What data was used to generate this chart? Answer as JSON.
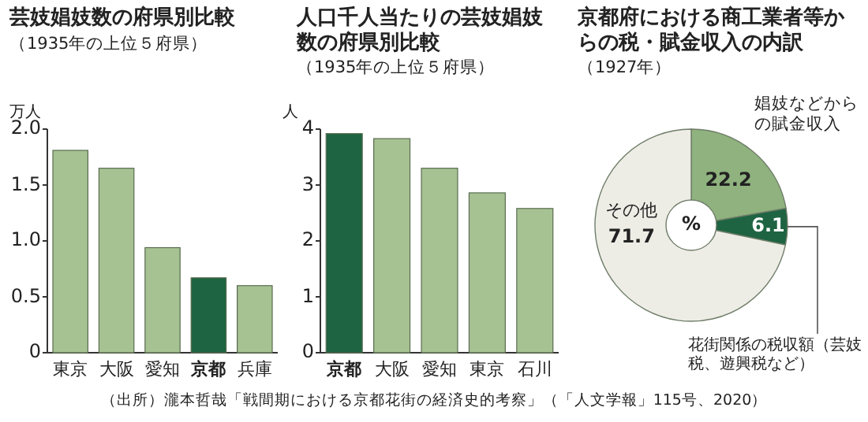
{
  "chart_data": [
    {
      "type": "bar",
      "title": "芸妓娼妓数の府県別比較",
      "subtitle": "（1935年の上位５府県）",
      "ylabel": "万人",
      "categories": [
        "東京",
        "大阪",
        "愛知",
        "京都",
        "兵庫"
      ],
      "values": [
        1.81,
        1.65,
        0.94,
        0.67,
        0.6
      ],
      "colors": [
        "#a6c292",
        "#a6c292",
        "#a6c292",
        "#1e6442",
        "#a6c292"
      ],
      "ylim": [
        0,
        2
      ],
      "yticks": [
        0,
        {
          "value": 0.5,
          "label": "0.5"
        },
        {
          "value": 1,
          "label": "1.0"
        },
        {
          "value": 1.5,
          "label": "1.5"
        },
        {
          "value": 2,
          "label": "2.0"
        }
      ]
    },
    {
      "type": "bar",
      "title": "人口千人当たりの芸妓娼妓数の府県別比較",
      "subtitle": "（1935年の上位５府県）",
      "ylabel": "人",
      "categories": [
        "京都",
        "大阪",
        "愛知",
        "東京",
        "石川"
      ],
      "values": [
        3.92,
        3.83,
        3.3,
        2.86,
        2.58
      ],
      "colors": [
        "#1e6442",
        "#a6c292",
        "#a6c292",
        "#a6c292",
        "#a6c292"
      ],
      "ylim": [
        0,
        4
      ],
      "yticks": [
        0,
        1,
        2,
        3,
        4
      ]
    },
    {
      "type": "donut",
      "title": "京都府における商工業者等からの税・賦金収入の内訳",
      "subtitle": "（1927年）",
      "categories": [
        "娼妓などからの賦金収入",
        "花街関係の税収額（芸妓税、遊興税など）",
        "その他"
      ],
      "values": [
        22.2,
        6.1,
        71.7
      ],
      "colors": [
        "#8fb27e",
        "#1e6442",
        "#ededE6"
      ],
      "data_labels": true,
      "annotations": [
        "%",
        "（出所）瀧本哲哉「戦間期における京都花街の経済史的考察」（「人文学報」115号、2020）"
      ]
    }
  ]
}
